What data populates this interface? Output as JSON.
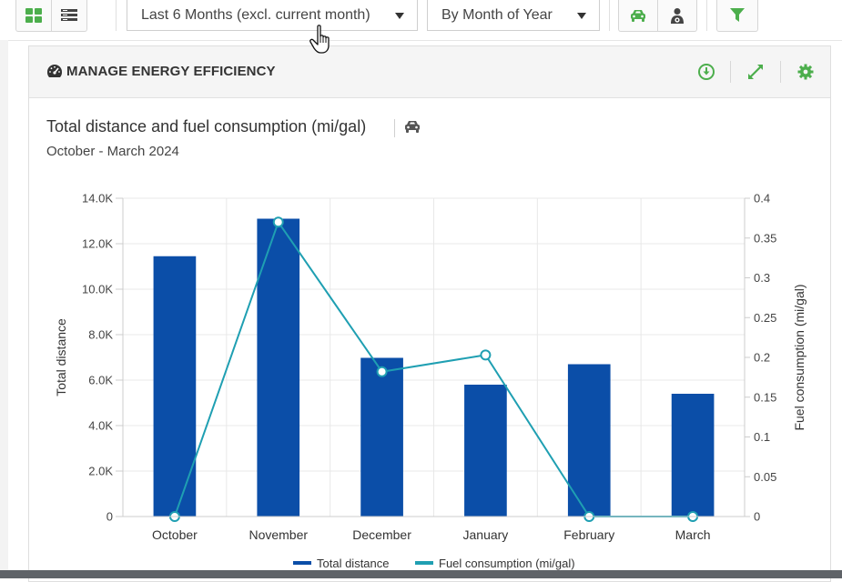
{
  "toolbar": {
    "period_select": "Last 6 Months (excl. current month)",
    "grouping_select": "By Month of Year"
  },
  "panel": {
    "title": "MANAGE ENERGY EFFICIENCY"
  },
  "chart": {
    "title": "Total distance and fuel consumption (mi/gal)",
    "subtitle": "October - March 2024"
  },
  "colors": {
    "accent_green": "#4cae4c",
    "bar_blue": "#0b4ea8",
    "line_teal": "#1f9fb2"
  },
  "icons": [
    "dashboard-grid-icon",
    "list-view-icon",
    "car-icon",
    "driver-icon",
    "filter-icon",
    "gauge-icon",
    "download-icon",
    "expand-icon",
    "gear-icon",
    "pointer-cursor-icon"
  ],
  "chart_data": {
    "type": "bar",
    "categories": [
      "October",
      "November",
      "December",
      "January",
      "February",
      "March"
    ],
    "series": [
      {
        "name": "Total distance",
        "type": "bar",
        "axis": "left",
        "values": [
          11450,
          13100,
          6980,
          5800,
          6700,
          5400
        ]
      },
      {
        "name": "Fuel consumption (mi/gal)",
        "type": "line",
        "axis": "right",
        "values": [
          0,
          0.37,
          0.182,
          0.203,
          0,
          0
        ]
      }
    ],
    "y_left": {
      "label": "Total distance",
      "ylim": [
        0,
        14000
      ],
      "ticks": [
        "0",
        "2.0K",
        "4.0K",
        "6.0K",
        "8.0K",
        "10.0K",
        "12.0K",
        "14.0K"
      ]
    },
    "y_right": {
      "label": "Fuel consumption (mi/gal)",
      "ylim": [
        0,
        0.4
      ],
      "ticks": [
        "0",
        "0.05",
        "0.1",
        "0.15",
        "0.2",
        "0.25",
        "0.3",
        "0.35",
        "0.4"
      ]
    },
    "grid": true,
    "legend_position": "bottom-center"
  }
}
